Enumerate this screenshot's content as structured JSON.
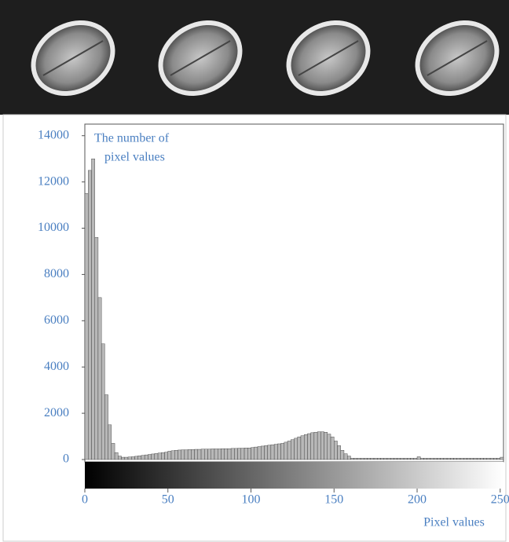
{
  "chart_data": {
    "type": "histogram",
    "y_label": [
      "The number of",
      "pixel values"
    ],
    "x_label": "Pixel values",
    "bins": [
      0,
      2,
      4,
      6,
      8,
      10,
      12,
      14,
      16,
      18,
      20,
      22,
      24,
      26,
      28,
      30,
      32,
      34,
      36,
      38,
      40,
      42,
      44,
      46,
      48,
      50,
      52,
      54,
      56,
      58,
      60,
      62,
      64,
      66,
      68,
      70,
      72,
      74,
      76,
      78,
      80,
      82,
      84,
      86,
      88,
      90,
      92,
      94,
      96,
      98,
      100,
      102,
      104,
      106,
      108,
      110,
      112,
      114,
      116,
      118,
      120,
      122,
      124,
      126,
      128,
      130,
      132,
      134,
      136,
      138,
      140,
      142,
      144,
      146,
      148,
      150,
      152,
      154,
      156,
      158,
      160,
      162,
      164,
      166,
      168,
      170,
      172,
      174,
      176,
      178,
      180,
      182,
      184,
      186,
      188,
      190,
      192,
      194,
      196,
      198,
      200,
      202,
      204,
      206,
      208,
      210,
      212,
      214,
      216,
      218,
      220,
      222,
      224,
      226,
      228,
      230,
      232,
      234,
      236,
      238,
      240,
      242,
      244,
      246,
      248,
      250,
      252
    ],
    "counts": [
      11500,
      12500,
      13000,
      9600,
      7000,
      5000,
      2800,
      1500,
      700,
      300,
      150,
      100,
      100,
      110,
      120,
      140,
      160,
      180,
      200,
      220,
      240,
      260,
      280,
      300,
      320,
      360,
      380,
      400,
      410,
      420,
      420,
      430,
      430,
      440,
      440,
      450,
      450,
      450,
      460,
      460,
      460,
      470,
      470,
      470,
      480,
      480,
      490,
      490,
      500,
      500,
      520,
      540,
      560,
      580,
      600,
      620,
      640,
      660,
      680,
      700,
      750,
      800,
      860,
      920,
      980,
      1030,
      1080,
      1120,
      1160,
      1180,
      1200,
      1200,
      1180,
      1100,
      980,
      800,
      600,
      400,
      250,
      150,
      60,
      60,
      60,
      60,
      60,
      60,
      60,
      60,
      60,
      60,
      60,
      60,
      60,
      60,
      60,
      60,
      60,
      60,
      60,
      60,
      120,
      60,
      60,
      60,
      60,
      60,
      60,
      60,
      60,
      60,
      60,
      60,
      60,
      60,
      60,
      60,
      60,
      60,
      60,
      60,
      60,
      60,
      60,
      60,
      60,
      100
    ],
    "color": "#b8b8b8",
    "xlim": [
      0,
      252
    ],
    "ylim": [
      0,
      14500
    ],
    "xticks": [
      0,
      50,
      100,
      150,
      200,
      250
    ],
    "yticks": [
      0,
      2000,
      4000,
      6000,
      8000,
      10000,
      12000,
      14000
    ],
    "grid": false
  }
}
